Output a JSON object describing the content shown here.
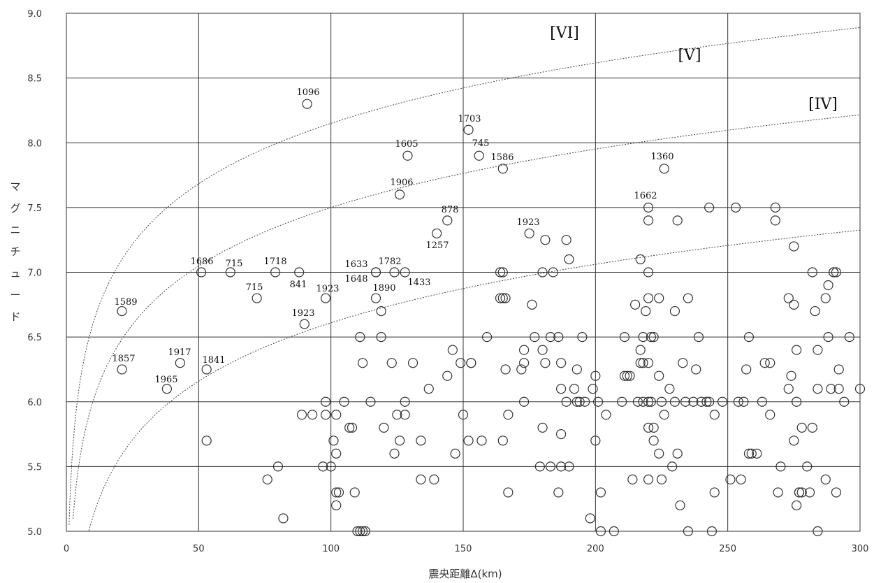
{
  "chart_data": {
    "type": "scatter",
    "title": "",
    "xlabel": "震央距離Δ(km)",
    "ylabel": "マグニチュード",
    "xlim": [
      0,
      300
    ],
    "ylim": [
      5.0,
      9.0
    ],
    "x_ticks": [
      "0",
      "50",
      "100",
      "150",
      "200",
      "250",
      "300"
    ],
    "y_ticks": [
      "5.0",
      "5.5",
      "6.0",
      "6.5",
      "7.0",
      "7.5",
      "8.0",
      "8.5",
      "9.0"
    ],
    "grid": true,
    "marker": "open-circle",
    "zone_labels": [
      "[VI]",
      "[V]",
      "[IV]"
    ],
    "curves": [
      {
        "name": "VI",
        "a": 5.05,
        "b": 1.55
      },
      {
        "name": "V",
        "a": 4.5,
        "b": 1.5
      },
      {
        "name": "IV",
        "a": 3.61,
        "b": 1.5
      }
    ],
    "labeled_points": [
      {
        "label": "1589",
        "x": 21,
        "y": 6.7
      },
      {
        "label": "1857",
        "x": 21,
        "y": 6.25
      },
      {
        "label": "1965",
        "x": 38,
        "y": 6.1
      },
      {
        "label": "1917",
        "x": 43,
        "y": 6.3
      },
      {
        "label": "1841",
        "x": 53,
        "y": 6.25
      },
      {
        "label": "1686",
        "x": 51,
        "y": 7.0
      },
      {
        "label": "715",
        "x": 62,
        "y": 7.0
      },
      {
        "label": "715",
        "x": 72,
        "y": 6.8
      },
      {
        "label": "1718",
        "x": 79,
        "y": 7.0
      },
      {
        "label": "841",
        "x": 88,
        "y": 7.0
      },
      {
        "label": "1923",
        "x": 98,
        "y": 6.8
      },
      {
        "label": "1923",
        "x": 90,
        "y": 6.6
      },
      {
        "label": "1096",
        "x": 91,
        "y": 8.3
      },
      {
        "label": "1633",
        "x": 117,
        "y": 7.0
      },
      {
        "label": "1648",
        "x": 117,
        "y": 7.0
      },
      {
        "label": "1782",
        "x": 124,
        "y": 7.0
      },
      {
        "label": "1433",
        "x": 128,
        "y": 7.0
      },
      {
        "label": "1890",
        "x": 117,
        "y": 6.8
      },
      {
        "label": "1906",
        "x": 126,
        "y": 7.6
      },
      {
        "label": "1605",
        "x": 129,
        "y": 7.9
      },
      {
        "label": "1257",
        "x": 140,
        "y": 7.3
      },
      {
        "label": "878",
        "x": 144,
        "y": 7.4
      },
      {
        "label": "1703",
        "x": 152,
        "y": 8.1
      },
      {
        "label": "745",
        "x": 156,
        "y": 7.9
      },
      {
        "label": "1586",
        "x": 165,
        "y": 7.8
      },
      {
        "label": "1923",
        "x": 175,
        "y": 7.3
      },
      {
        "label": "1360",
        "x": 226,
        "y": 7.8
      },
      {
        "label": "1662",
        "x": 220,
        "y": 7.5
      }
    ],
    "points": [
      [
        21,
        6.7
      ],
      [
        21,
        6.25
      ],
      [
        38,
        6.1
      ],
      [
        43,
        6.3
      ],
      [
        53,
        6.25
      ],
      [
        53,
        5.7
      ],
      [
        51,
        7.0
      ],
      [
        62,
        7.0
      ],
      [
        72,
        6.8
      ],
      [
        79,
        7.0
      ],
      [
        88,
        7.0
      ],
      [
        98,
        6.8
      ],
      [
        90,
        6.6
      ],
      [
        91,
        8.3
      ],
      [
        76,
        5.4
      ],
      [
        80,
        5.5
      ],
      [
        82,
        5.1
      ],
      [
        89,
        5.9
      ],
      [
        93,
        5.9
      ],
      [
        97,
        5.5
      ],
      [
        98,
        6.0
      ],
      [
        98,
        5.9
      ],
      [
        100,
        5.5
      ],
      [
        101,
        5.7
      ],
      [
        102,
        5.6
      ],
      [
        102,
        5.9
      ],
      [
        102,
        5.3
      ],
      [
        103,
        5.3
      ],
      [
        102,
        5.2
      ],
      [
        105,
        6.0
      ],
      [
        107,
        5.8
      ],
      [
        108,
        5.8
      ],
      [
        109,
        5.3
      ],
      [
        110,
        5.0
      ],
      [
        111,
        5.0
      ],
      [
        112,
        5.0
      ],
      [
        113,
        5.0
      ],
      [
        111,
        6.5
      ],
      [
        112,
        6.3
      ],
      [
        115,
        6.0
      ],
      [
        117,
        7.0
      ],
      [
        117,
        7.0
      ],
      [
        117,
        6.8
      ],
      [
        119,
        6.7
      ],
      [
        119,
        6.5
      ],
      [
        120,
        5.8
      ],
      [
        123,
        6.3
      ],
      [
        124,
        7.0
      ],
      [
        124,
        5.6
      ],
      [
        125,
        5.9
      ],
      [
        126,
        5.7
      ],
      [
        126,
        7.6
      ],
      [
        128,
        7.0
      ],
      [
        128,
        6.0
      ],
      [
        128,
        5.9
      ],
      [
        129,
        7.9
      ],
      [
        131,
        6.3
      ],
      [
        134,
        5.7
      ],
      [
        134,
        5.4
      ],
      [
        137,
        6.1
      ],
      [
        139,
        5.4
      ],
      [
        140,
        7.3
      ],
      [
        144,
        7.4
      ],
      [
        144,
        6.2
      ],
      [
        146,
        6.4
      ],
      [
        147,
        5.6
      ],
      [
        149,
        6.3
      ],
      [
        150,
        5.9
      ],
      [
        152,
        8.1
      ],
      [
        152,
        5.7
      ],
      [
        153,
        6.3
      ],
      [
        153,
        6.3
      ],
      [
        156,
        7.9
      ],
      [
        157,
        5.7
      ],
      [
        159,
        6.5
      ],
      [
        164,
        7.0
      ],
      [
        165,
        7.0
      ],
      [
        164,
        6.8
      ],
      [
        165,
        6.8
      ],
      [
        166,
        6.8
      ],
      [
        165,
        7.8
      ],
      [
        165,
        5.7
      ],
      [
        166,
        6.25
      ],
      [
        167,
        5.9
      ],
      [
        167,
        5.3
      ],
      [
        172,
        6.25
      ],
      [
        173,
        6.3
      ],
      [
        173,
        6.4
      ],
      [
        173,
        6.0
      ],
      [
        175,
        7.3
      ],
      [
        176,
        6.75
      ],
      [
        177,
        6.5
      ],
      [
        179,
        5.5
      ],
      [
        180,
        5.8
      ],
      [
        180,
        7.0
      ],
      [
        180,
        6.4
      ],
      [
        181,
        6.3
      ],
      [
        181,
        7.25
      ],
      [
        183,
        6.5
      ],
      [
        183,
        5.5
      ],
      [
        184,
        7.0
      ],
      [
        186,
        5.3
      ],
      [
        186,
        6.5
      ],
      [
        187,
        5.5
      ],
      [
        187,
        6.1
      ],
      [
        187,
        5.75
      ],
      [
        187,
        6.3
      ],
      [
        189,
        6.0
      ],
      [
        189,
        7.25
      ],
      [
        190,
        7.1
      ],
      [
        190,
        5.5
      ],
      [
        192,
        6.1
      ],
      [
        193,
        6.25
      ],
      [
        193,
        6.0
      ],
      [
        194,
        6.0
      ],
      [
        195,
        6.5
      ],
      [
        196,
        6.0
      ],
      [
        198,
        5.1
      ],
      [
        199,
        6.1
      ],
      [
        200,
        6.2
      ],
      [
        200,
        5.7
      ],
      [
        201,
        6.0
      ],
      [
        202,
        5.0
      ],
      [
        202,
        5.3
      ],
      [
        204,
        5.9
      ],
      [
        207,
        5.0
      ],
      [
        210,
        6.0
      ],
      [
        211,
        6.5
      ],
      [
        211,
        6.2
      ],
      [
        212,
        6.2
      ],
      [
        213,
        6.2
      ],
      [
        214,
        5.4
      ],
      [
        215,
        6.75
      ],
      [
        216,
        6.0
      ],
      [
        217,
        6.4
      ],
      [
        217,
        6.3
      ],
      [
        217,
        7.1
      ],
      [
        218,
        6.3
      ],
      [
        218,
        6.0
      ],
      [
        218,
        6.5
      ],
      [
        219,
        6.7
      ],
      [
        220,
        6.3
      ],
      [
        220,
        7.5
      ],
      [
        220,
        7.4
      ],
      [
        220,
        7.0
      ],
      [
        220,
        6.8
      ],
      [
        220,
        6.0
      ],
      [
        220,
        5.8
      ],
      [
        220,
        5.4
      ],
      [
        221,
        6.0
      ],
      [
        221,
        6.5
      ],
      [
        222,
        6.5
      ],
      [
        222,
        5.7
      ],
      [
        222,
        5.8
      ],
      [
        224,
        6.8
      ],
      [
        224,
        6.2
      ],
      [
        224,
        5.6
      ],
      [
        225,
        6.0
      ],
      [
        225,
        5.4
      ],
      [
        226,
        7.8
      ],
      [
        226,
        5.9
      ],
      [
        228,
        6.1
      ],
      [
        229,
        5.5
      ],
      [
        230,
        6.7
      ],
      [
        230,
        6.0
      ],
      [
        231,
        7.4
      ],
      [
        231,
        5.6
      ],
      [
        232,
        5.2
      ],
      [
        233,
        6.3
      ],
      [
        234,
        6.0
      ],
      [
        235,
        6.8
      ],
      [
        235,
        5.0
      ],
      [
        237,
        6.0
      ],
      [
        238,
        6.25
      ],
      [
        239,
        6.5
      ],
      [
        240,
        6.0
      ],
      [
        242,
        6.0
      ],
      [
        243,
        7.5
      ],
      [
        243,
        6.0
      ],
      [
        244,
        5.0
      ],
      [
        245,
        5.9
      ],
      [
        245,
        5.3
      ],
      [
        248,
        6.0
      ],
      [
        251,
        5.4
      ],
      [
        253,
        7.5
      ],
      [
        254,
        6.0
      ],
      [
        255,
        5.4
      ],
      [
        256,
        6.0
      ],
      [
        257,
        6.25
      ],
      [
        258,
        6.5
      ],
      [
        258,
        5.6
      ],
      [
        259,
        5.6
      ],
      [
        261,
        5.6
      ],
      [
        263,
        6.0
      ],
      [
        264,
        6.3
      ],
      [
        266,
        6.3
      ],
      [
        266,
        5.9
      ],
      [
        268,
        7.5
      ],
      [
        268,
        7.4
      ],
      [
        269,
        5.3
      ],
      [
        270,
        5.5
      ],
      [
        273,
        6.8
      ],
      [
        273,
        6.1
      ],
      [
        274,
        6.2
      ],
      [
        275,
        7.2
      ],
      [
        275,
        6.75
      ],
      [
        275,
        5.7
      ],
      [
        276,
        6.4
      ],
      [
        276,
        6.0
      ],
      [
        276,
        5.2
      ],
      [
        277,
        5.3
      ],
      [
        277,
        5.3
      ],
      [
        278,
        5.3
      ],
      [
        278,
        5.8
      ],
      [
        280,
        5.5
      ],
      [
        281,
        5.3
      ],
      [
        282,
        5.8
      ],
      [
        282,
        7.0
      ],
      [
        283,
        6.7
      ],
      [
        284,
        6.4
      ],
      [
        284,
        6.1
      ],
      [
        284,
        5.0
      ],
      [
        287,
        6.8
      ],
      [
        287,
        5.4
      ],
      [
        288,
        6.5
      ],
      [
        288,
        6.9
      ],
      [
        289,
        6.1
      ],
      [
        290,
        7.0
      ],
      [
        290,
        7.0
      ],
      [
        291,
        7.0
      ],
      [
        291,
        5.3
      ],
      [
        292,
        6.25
      ],
      [
        292,
        6.1
      ],
      [
        294,
        6.0
      ],
      [
        296,
        6.5
      ],
      [
        300,
        6.1
      ]
    ]
  }
}
